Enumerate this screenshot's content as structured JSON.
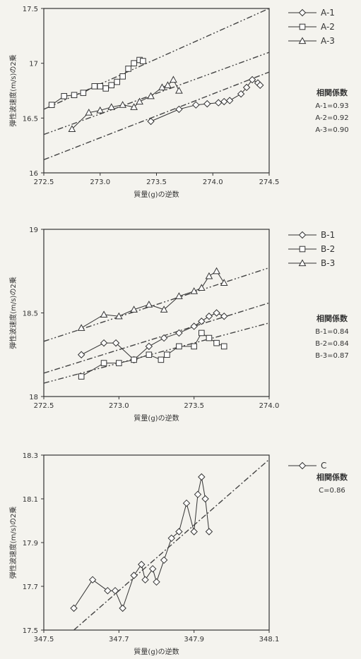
{
  "chart_data": [
    {
      "type": "line",
      "ylabel": "弾性波速度(m/s)の2乗",
      "xlabel": "質量(g)の逆数",
      "xlim": [
        272.5,
        274.5
      ],
      "ylim": [
        16,
        17.5
      ],
      "xticks": [
        272.5,
        273.0,
        273.5,
        274.0,
        274.5
      ],
      "xtick_labels": [
        "272.5",
        "273.0",
        "273.5",
        "274.0",
        "274.5"
      ],
      "yticks": [
        16,
        16.5,
        17,
        17.5
      ],
      "ytick_labels": [
        "16",
        "16.5",
        "17",
        "17.5"
      ],
      "series": [
        {
          "name": "A-1",
          "marker": "diamond",
          "x": [
            273.45,
            273.7,
            273.85,
            273.95,
            274.05,
            274.1,
            274.15,
            274.25,
            274.3,
            274.35,
            274.4,
            274.42
          ],
          "y": [
            16.47,
            16.58,
            16.62,
            16.63,
            16.64,
            16.65,
            16.66,
            16.72,
            16.78,
            16.85,
            16.82,
            16.8
          ],
          "trend": {
            "x": [
              272.5,
              274.5
            ],
            "y": [
              16.12,
              16.92
            ]
          }
        },
        {
          "name": "A-2",
          "marker": "square",
          "x": [
            272.57,
            272.68,
            272.77,
            272.85,
            272.95,
            273.0,
            273.05,
            273.1,
            273.15,
            273.2,
            273.25,
            273.3,
            273.35,
            273.38
          ],
          "y": [
            16.62,
            16.7,
            16.71,
            16.73,
            16.79,
            16.79,
            16.77,
            16.8,
            16.83,
            16.88,
            16.95,
            17.0,
            17.03,
            17.02
          ],
          "trend": {
            "x": [
              272.5,
              274.5
            ],
            "y": [
              16.58,
              17.5
            ]
          }
        },
        {
          "name": "A-3",
          "marker": "triangle",
          "x": [
            272.75,
            272.9,
            273.0,
            273.1,
            273.2,
            273.3,
            273.35,
            273.45,
            273.55,
            273.6,
            273.65,
            273.7
          ],
          "y": [
            16.4,
            16.55,
            16.57,
            16.6,
            16.62,
            16.6,
            16.65,
            16.7,
            16.78,
            16.8,
            16.85,
            16.75
          ],
          "trend": {
            "x": [
              272.5,
              274.5
            ],
            "y": [
              16.35,
              17.1
            ]
          }
        }
      ],
      "correlation": {
        "title": "相関係数",
        "items": [
          "A-1=0.93",
          "A-2=0.92",
          "A-3=0.90"
        ]
      }
    },
    {
      "type": "line",
      "ylabel": "弾性波速度(m/s)の2乗",
      "xlabel": "質量(g)の逆数",
      "xlim": [
        272.5,
        274.0
      ],
      "ylim": [
        18,
        19
      ],
      "xticks": [
        272.5,
        273.0,
        273.5,
        274.0
      ],
      "xtick_labels": [
        "272.5",
        "273.0",
        "273.5",
        "274.0"
      ],
      "yticks": [
        18,
        18.5,
        19
      ],
      "ytick_labels": [
        "18",
        "18.5",
        "19"
      ],
      "series": [
        {
          "name": "B-1",
          "marker": "diamond",
          "x": [
            272.75,
            272.9,
            272.98,
            273.1,
            273.2,
            273.3,
            273.4,
            273.5,
            273.55,
            273.6,
            273.65,
            273.7
          ],
          "y": [
            18.25,
            18.32,
            18.32,
            18.22,
            18.3,
            18.35,
            18.38,
            18.42,
            18.45,
            18.48,
            18.5,
            18.48
          ],
          "trend": {
            "x": [
              272.5,
              274.0
            ],
            "y": [
              18.14,
              18.56
            ]
          }
        },
        {
          "name": "B-2",
          "marker": "square",
          "x": [
            272.75,
            272.9,
            273.0,
            273.1,
            273.2,
            273.28,
            273.32,
            273.4,
            273.5,
            273.55,
            273.6,
            273.65,
            273.7
          ],
          "y": [
            18.12,
            18.2,
            18.2,
            18.22,
            18.25,
            18.22,
            18.25,
            18.3,
            18.3,
            18.38,
            18.35,
            18.32,
            18.3
          ],
          "trend": {
            "x": [
              272.5,
              274.0
            ],
            "y": [
              18.08,
              18.44
            ]
          }
        },
        {
          "name": "B-3",
          "marker": "triangle",
          "x": [
            272.75,
            272.9,
            273.0,
            273.1,
            273.2,
            273.3,
            273.4,
            273.5,
            273.55,
            273.6,
            273.65,
            273.7
          ],
          "y": [
            18.41,
            18.49,
            18.48,
            18.52,
            18.55,
            18.52,
            18.6,
            18.63,
            18.65,
            18.72,
            18.75,
            18.68
          ],
          "trend": {
            "x": [
              272.5,
              274.0
            ],
            "y": [
              18.33,
              18.77
            ]
          }
        }
      ],
      "correlation": {
        "title": "相関係数",
        "items": [
          "B-1=0.84",
          "B-2=0.84",
          "B-3=0.87"
        ]
      }
    },
    {
      "type": "line",
      "ylabel": "弾性波速度(m/s)の2乗",
      "xlabel": "質量(g)の逆数",
      "xlim": [
        347.5,
        348.1
      ],
      "ylim": [
        17.5,
        18.3
      ],
      "xticks": [
        347.5,
        347.7,
        347.9,
        348.1
      ],
      "xtick_labels": [
        "347.5",
        "347.7",
        "347.9",
        "348.1"
      ],
      "yticks": [
        17.5,
        17.7,
        17.9,
        18.1,
        18.3
      ],
      "ytick_labels": [
        "17.5",
        "17.7",
        "17.9",
        "18.1",
        "18.3"
      ],
      "series": [
        {
          "name": "C",
          "marker": "diamond",
          "x": [
            347.58,
            347.63,
            347.67,
            347.69,
            347.71,
            347.74,
            347.76,
            347.77,
            347.79,
            347.8,
            347.82,
            347.84,
            347.86,
            347.88,
            347.9,
            347.91,
            347.92,
            347.93,
            347.94
          ],
          "y": [
            17.6,
            17.73,
            17.68,
            17.68,
            17.6,
            17.75,
            17.8,
            17.73,
            17.78,
            17.72,
            17.82,
            17.92,
            17.95,
            18.08,
            17.95,
            18.12,
            18.2,
            18.1,
            17.95
          ],
          "trend": {
            "x": [
              347.58,
              348.1
            ],
            "y": [
              17.5,
              18.28
            ]
          }
        }
      ],
      "correlation": {
        "title": "相関係数",
        "items": [
          "C=0.86"
        ]
      }
    }
  ]
}
